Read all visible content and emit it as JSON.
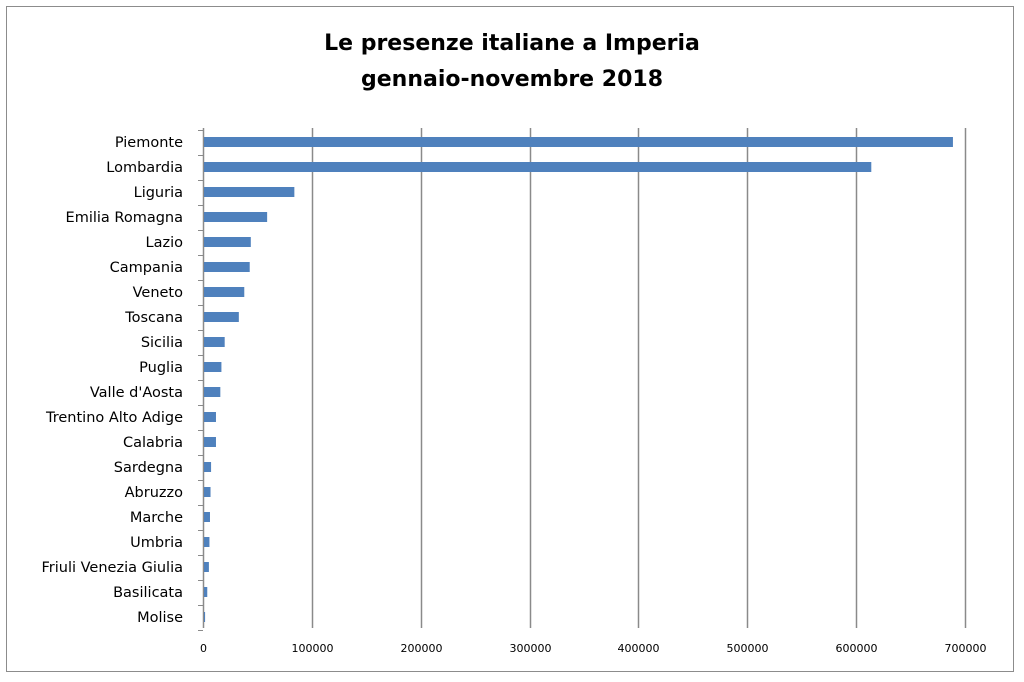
{
  "chart_data": {
    "type": "bar",
    "orientation": "horizontal",
    "title_line1": "Le presenze italiane a Imperia",
    "title_line2": "gennaio-novembre 2018",
    "xlabel": "",
    "ylabel": "",
    "xlim": [
      0,
      700000
    ],
    "x_ticks": [
      "0",
      "100000",
      "200000",
      "300000",
      "400000",
      "500000",
      "600000",
      "700000"
    ],
    "grid": "vertical",
    "legend": "none",
    "bar_color": "#4f81bd",
    "categories": [
      "Piemonte",
      "Lombardia",
      "Liguria",
      "Emilia Romagna",
      "Lazio",
      "Campania",
      "Veneto",
      "Toscana",
      "Sicilia",
      "Puglia",
      "Valle d'Aosta",
      "Trentino Alto Adige",
      "Calabria",
      "Sardegna",
      "Abruzzo",
      "Marche",
      "Umbria",
      "Friuli Venezia Giulia",
      "Basilicata",
      "Molise"
    ],
    "values": [
      688000,
      613000,
      83000,
      58000,
      43000,
      42000,
      37000,
      32000,
      19000,
      16000,
      15000,
      11000,
      11000,
      6500,
      6000,
      5500,
      5000,
      4500,
      3000,
      1000
    ]
  }
}
